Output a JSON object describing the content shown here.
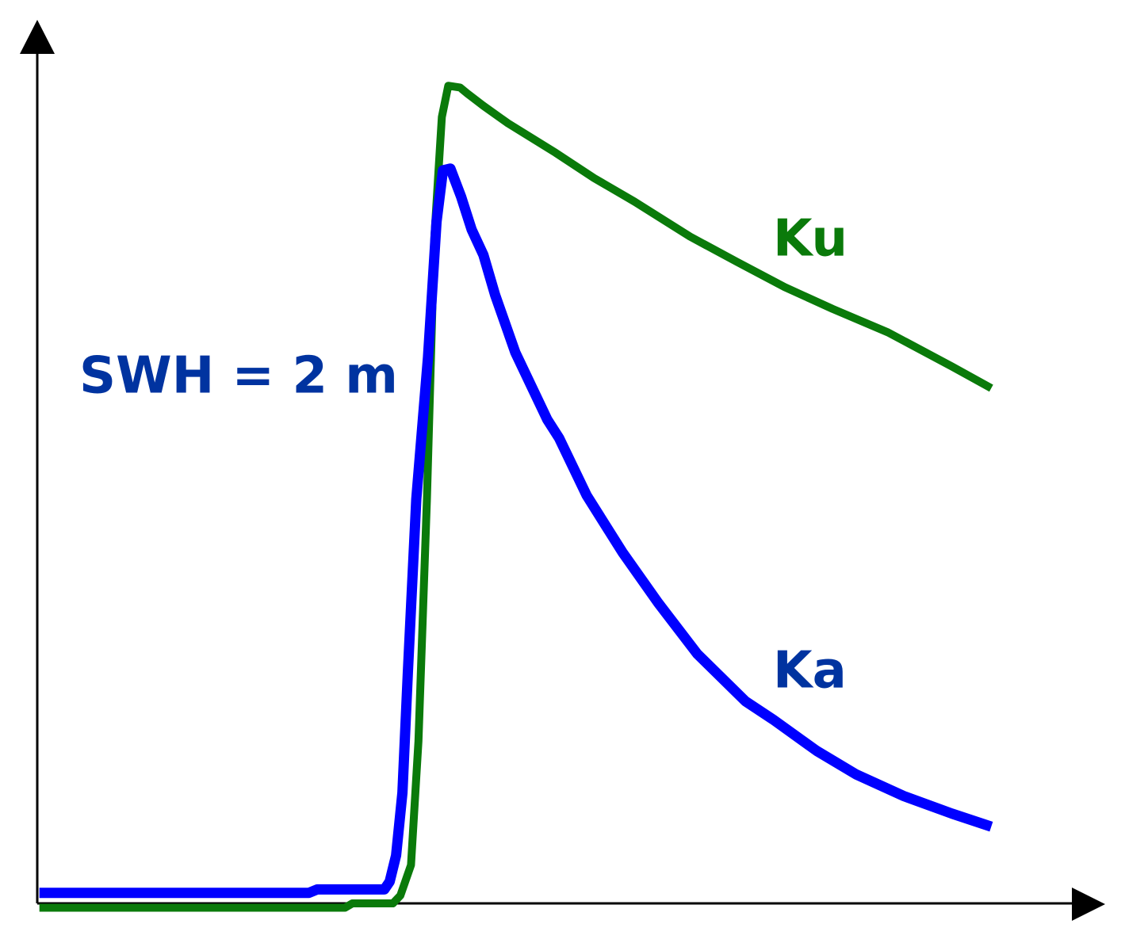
{
  "chart_data": {
    "type": "line",
    "annotation": "SWH = 2 m",
    "annotation_color": "#0033a0",
    "xlim": [
      0,
      100
    ],
    "ylim": [
      -2,
      100
    ],
    "series": [
      {
        "name": "Ku",
        "color": "#0a7a0a",
        "label_color": "#0a7a0a",
        "x": [
          0.2,
          28.9,
          29.6,
          33.4,
          34.1,
          35.1,
          35.8,
          36.6,
          37.3,
          37.8,
          38.0,
          38.6,
          39.7,
          40.4,
          41.9,
          44.2,
          48.7,
          52.3,
          56.1,
          61.3,
          65.7,
          70.2,
          74.7,
          79.9,
          85.9,
          89.6
        ],
        "values": [
          -0.5,
          -0.5,
          0,
          0,
          0.9,
          4.4,
          18.6,
          46.4,
          76.4,
          86.4,
          90.2,
          93.8,
          93.6,
          92.9,
          91.5,
          89.5,
          86.1,
          83.2,
          80.5,
          76.5,
          73.6,
          70.7,
          68.2,
          65.5,
          61.6,
          59.1
        ]
      },
      {
        "name": "Ka",
        "color": "#0000ff",
        "label_color": "#0033a0",
        "x": [
          0.2,
          25.5,
          26.3,
          32.6,
          33.1,
          33.7,
          34.3,
          34.8,
          35.6,
          36.7,
          37.5,
          38.1,
          38.8,
          39.8,
          40.8,
          41.9,
          43.0,
          44.9,
          47.9,
          49.0,
          51.6,
          55.0,
          58.3,
          62.0,
          66.5,
          69.1,
          73.2,
          76.9,
          81.4,
          85.9,
          89.6
        ],
        "values": [
          1.2,
          1.2,
          1.6,
          1.6,
          2.5,
          5.5,
          12.7,
          26.4,
          46.4,
          62.7,
          78.2,
          84.1,
          84.3,
          81.1,
          77.3,
          74.4,
          69.8,
          63.2,
          55.5,
          53.4,
          46.8,
          40.2,
          34.5,
          28.6,
          23.2,
          21.1,
          17.5,
          14.8,
          12.3,
          10.3,
          8.8
        ]
      }
    ]
  }
}
